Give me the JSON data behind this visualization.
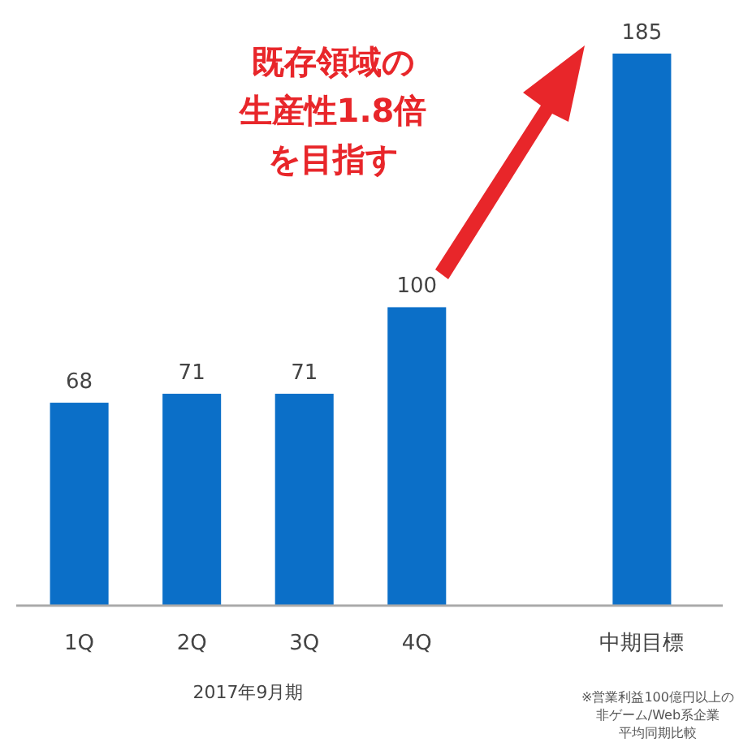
{
  "chart_data": {
    "type": "bar",
    "categories": [
      "1Q",
      "2Q",
      "3Q",
      "4Q",
      null,
      "中期目標"
    ],
    "values": [
      68,
      71,
      71,
      100,
      null,
      185
    ],
    "color": "#0b6fc8",
    "data_labels": true,
    "xlabel": "2017年9月期",
    "annotations": [
      "既存領域の生産性1.8倍を目指す",
      "※営業利益100億円以上の非ゲーム/Web系企業平均同期比較"
    ]
  }
}
